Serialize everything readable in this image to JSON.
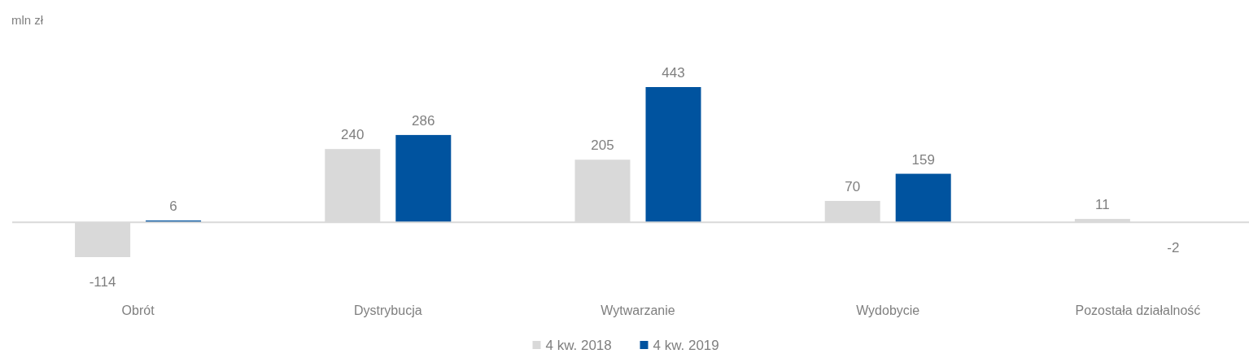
{
  "chart_data": {
    "type": "bar",
    "ylabel": "mln zł",
    "categories": [
      "Obrót",
      "Dystrybucja",
      "Wytwarzanie",
      "Wydobycie",
      "Pozostała działalność"
    ],
    "series": [
      {
        "name": "4 kw. 2018",
        "color": "#d9d9d9",
        "values": [
          -114,
          240,
          205,
          70,
          11
        ]
      },
      {
        "name": "4 kw. 2019",
        "color": "#00539f",
        "values": [
          6,
          286,
          443,
          159,
          -2
        ]
      }
    ],
    "data_labels": true,
    "legend": "bottom"
  }
}
